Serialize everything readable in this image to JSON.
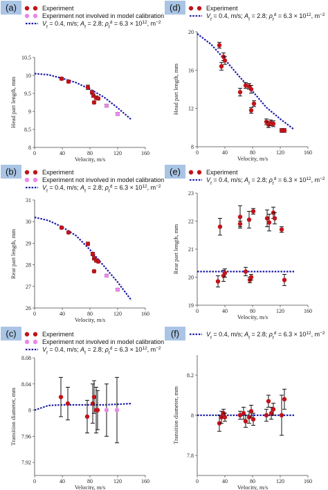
{
  "colors": {
    "experiment": "#c0141a",
    "not_involved": "#e88ae8",
    "model": "#1a1aa8",
    "letter_bg": "#a9c4e4",
    "errorbar": "#111111"
  },
  "legend": {
    "experiment": "Experiment",
    "not_involved": "Experiment not involved in model calibration",
    "model": "V_f = 0.4, m/s; A_f = 2.8; ρ_f^d = 6.3 × 10^12, m^-2"
  },
  "chart_data": [
    {
      "id": "a",
      "type": "scatter",
      "letter": "(a)",
      "xlabel": "Velocity, m/s",
      "ylabel": "Head part length, mm",
      "xlim": [
        0,
        160
      ],
      "ylim": [
        8,
        10.5
      ],
      "xticks": [
        "0",
        "40",
        "80",
        "120",
        "160"
      ],
      "yticks": [
        "8",
        "8.5",
        "9",
        "9.5",
        "10",
        "10.5"
      ],
      "legend_items": [
        "experiment",
        "not_involved",
        "model"
      ],
      "series": [
        {
          "name": "Experiment",
          "points": [
            {
              "x": 39,
              "y": 9.91,
              "err": 0.04
            },
            {
              "x": 49,
              "y": 9.83,
              "err": 0.04
            },
            {
              "x": 77,
              "y": 9.67,
              "err": 0.06
            },
            {
              "x": 83,
              "y": 9.53,
              "err": 0.05
            },
            {
              "x": 85,
              "y": 9.44,
              "err": 0.05
            },
            {
              "x": 86,
              "y": 9.25,
              "err": 0.04
            },
            {
              "x": 89,
              "y": 9.38,
              "err": 0.05
            },
            {
              "x": 92,
              "y": 9.36,
              "err": 0.04
            }
          ]
        },
        {
          "name": "Experiment not involved in model calibration",
          "points": [
            {
              "x": 104,
              "y": 9.16,
              "err": 0.04
            },
            {
              "x": 120,
              "y": 8.93,
              "err": 0.04
            }
          ]
        }
      ],
      "model": {
        "x": [
          0,
          20,
          40,
          60,
          80,
          100,
          120,
          140
        ],
        "y": [
          10.05,
          10.02,
          9.92,
          9.8,
          9.62,
          9.4,
          9.1,
          8.77
        ]
      }
    },
    {
      "id": "d",
      "type": "scatter",
      "letter": "(d)",
      "xlabel": "Velocity, m/s",
      "ylabel": "Head part length, mm",
      "xlim": [
        0,
        160
      ],
      "ylim": [
        8,
        20
      ],
      "xticks": [
        "0",
        "40",
        "80",
        "120",
        "160"
      ],
      "yticks": [
        "8",
        "12",
        "16",
        "20"
      ],
      "legend_items": [
        "experiment",
        "model"
      ],
      "series": [
        {
          "name": "Experiment",
          "points": [
            {
              "x": 32,
              "y": 18.6,
              "err": 0.3
            },
            {
              "x": 35,
              "y": 16.4,
              "err": 0.4
            },
            {
              "x": 38,
              "y": 17.4,
              "err": 0.4
            },
            {
              "x": 40,
              "y": 17.0,
              "err": 0.4
            },
            {
              "x": 62,
              "y": 13.7,
              "err": 0.4
            },
            {
              "x": 70,
              "y": 14.4,
              "err": 0.3
            },
            {
              "x": 75,
              "y": 14.3,
              "err": 0.3
            },
            {
              "x": 78,
              "y": 14.0,
              "err": 0.4
            },
            {
              "x": 78,
              "y": 11.8,
              "err": 0.3
            },
            {
              "x": 82,
              "y": 12.5,
              "err": 0.3
            },
            {
              "x": 100,
              "y": 10.6,
              "err": 0.3
            },
            {
              "x": 103,
              "y": 10.3,
              "err": 0.3
            },
            {
              "x": 106,
              "y": 10.5,
              "err": 0.3
            },
            {
              "x": 110,
              "y": 10.4,
              "err": 0.3
            },
            {
              "x": 122,
              "y": 9.7,
              "err": 0.2
            },
            {
              "x": 126,
              "y": 9.7,
              "err": 0.2
            }
          ]
        }
      ],
      "model": {
        "x": [
          0,
          20,
          40,
          60,
          80,
          100,
          120,
          140
        ],
        "y": [
          19.8,
          18.7,
          17.1,
          15.4,
          13.8,
          12.1,
          10.9,
          9.8
        ]
      }
    },
    {
      "id": "b",
      "type": "scatter",
      "letter": "(b)",
      "xlabel": "Velocity, m/s",
      "ylabel": "Rear part length, mm",
      "xlim": [
        0,
        160
      ],
      "ylim": [
        26,
        31
      ],
      "xticks": [
        "0",
        "40",
        "80",
        "120",
        "160"
      ],
      "yticks": [
        "26",
        "27",
        "28",
        "29",
        "30",
        "31"
      ],
      "legend_items": [
        "experiment",
        "not_involved",
        "model"
      ],
      "series": [
        {
          "name": "Experiment",
          "points": [
            {
              "x": 39,
              "y": 29.72,
              "err": 0.06
            },
            {
              "x": 49,
              "y": 29.5,
              "err": 0.06
            },
            {
              "x": 77,
              "y": 28.97,
              "err": 0.08
            },
            {
              "x": 84,
              "y": 28.5,
              "err": 0.08
            },
            {
              "x": 86,
              "y": 28.3,
              "err": 0.08
            },
            {
              "x": 86,
              "y": 27.7,
              "err": 0.06
            },
            {
              "x": 89,
              "y": 28.2,
              "err": 0.08
            },
            {
              "x": 92,
              "y": 28.15,
              "err": 0.06
            }
          ]
        },
        {
          "name": "Experiment not involved in model calibration",
          "points": [
            {
              "x": 104,
              "y": 27.5,
              "err": 0.06
            },
            {
              "x": 120,
              "y": 26.85,
              "err": 0.06
            }
          ]
        }
      ],
      "model": {
        "x": [
          0,
          20,
          40,
          60,
          80,
          100,
          120,
          140
        ],
        "y": [
          30.2,
          30.05,
          29.75,
          29.35,
          28.7,
          27.95,
          27.2,
          26.35
        ]
      }
    },
    {
      "id": "e",
      "type": "scatter",
      "letter": "(e)",
      "xlabel": "Velocity, m/s",
      "ylabel": "Rear part length, mm",
      "xlim": [
        0,
        160
      ],
      "ylim": [
        19,
        23
      ],
      "xticks": [
        "0",
        "40",
        "80",
        "120",
        "160"
      ],
      "yticks": [
        "19",
        "20",
        "21",
        "22",
        "23"
      ],
      "legend_items": [
        "experiment",
        "model"
      ],
      "series": [
        {
          "name": "Experiment",
          "points": [
            {
              "x": 30,
              "y": 19.85,
              "err": 0.2
            },
            {
              "x": 33,
              "y": 21.8,
              "err": 0.3
            },
            {
              "x": 38,
              "y": 20.05,
              "err": 0.2
            },
            {
              "x": 40,
              "y": 20.15,
              "err": 0.15
            },
            {
              "x": 62,
              "y": 22.15,
              "err": 0.4
            },
            {
              "x": 62,
              "y": 21.9,
              "err": 0.1
            },
            {
              "x": 70,
              "y": 20.2,
              "err": 0.15
            },
            {
              "x": 75,
              "y": 22.05,
              "err": 0.3
            },
            {
              "x": 76,
              "y": 19.9,
              "err": 0.1
            },
            {
              "x": 78,
              "y": 20.0,
              "err": 0.1
            },
            {
              "x": 81,
              "y": 22.35,
              "err": 0.1
            },
            {
              "x": 101,
              "y": 22.1,
              "err": 0.3
            },
            {
              "x": 104,
              "y": 21.95,
              "err": 0.3
            },
            {
              "x": 110,
              "y": 22.3,
              "err": 0.2
            },
            {
              "x": 112,
              "y": 22.1,
              "err": 0.2
            },
            {
              "x": 122,
              "y": 21.7,
              "err": 0.1
            },
            {
              "x": 126,
              "y": 19.9,
              "err": 0.2
            }
          ]
        }
      ],
      "model": {
        "x": [
          0,
          20,
          40,
          60,
          80,
          100,
          120,
          140
        ],
        "y": [
          20.2,
          20.2,
          20.2,
          20.2,
          20.2,
          20.2,
          20.2,
          20.2
        ]
      }
    },
    {
      "id": "c",
      "type": "scatter",
      "letter": "(c)",
      "xlabel": "Velocity, m/s",
      "ylabel": "Transition diameter, mm",
      "xlim": [
        0,
        160
      ],
      "ylim": [
        7.9,
        8.08
      ],
      "xticks": [
        "0",
        "40",
        "80",
        "120",
        "160"
      ],
      "yticks": [
        "7.92",
        "7.96",
        "8",
        "8.04",
        "8.08"
      ],
      "legend_items": [
        "experiment",
        "not_involved",
        "model"
      ],
      "series": [
        {
          "name": "Experiment",
          "points": [
            {
              "x": 38,
              "y": 8.02,
              "err": 0.03
            },
            {
              "x": 48,
              "y": 8.01,
              "err": 0.025
            },
            {
              "x": 76,
              "y": 7.99,
              "err": 0.025
            },
            {
              "x": 84,
              "y": 8.01,
              "err": 0.03
            },
            {
              "x": 86,
              "y": 8.02,
              "err": 0.025
            },
            {
              "x": 89,
              "y": 8.0,
              "err": 0.035
            },
            {
              "x": 91,
              "y": 8.0,
              "err": 0.03
            }
          ]
        },
        {
          "name": "Experiment not involved in model calibration",
          "points": [
            {
              "x": 104,
              "y": 8.0,
              "err": 0.04
            },
            {
              "x": 119,
              "y": 8.0,
              "err": 0.05
            }
          ]
        }
      ],
      "model": {
        "x": [
          0,
          20,
          40,
          60,
          80,
          100,
          120,
          140
        ],
        "y": [
          8.0,
          8.007,
          8.008,
          8.008,
          8.008,
          8.008,
          8.009,
          8.01
        ]
      }
    },
    {
      "id": "f",
      "type": "scatter",
      "letter": "(f)",
      "xlabel": "Velocity, m/s",
      "ylabel": "Transition diameter, mm",
      "xlim": [
        0,
        160
      ],
      "ylim": [
        7.7,
        8.3
      ],
      "xticks": [
        "0",
        "40",
        "80",
        "120",
        "160"
      ],
      "yticks": [
        "7.8",
        "8",
        "8.2"
      ],
      "legend_items": [
        "model"
      ],
      "series": [
        {
          "name": "Experiment",
          "points": [
            {
              "x": 32,
              "y": 7.96,
              "err": 0.04
            },
            {
              "x": 35,
              "y": 7.99,
              "err": 0.03
            },
            {
              "x": 38,
              "y": 8.01,
              "err": 0.02
            },
            {
              "x": 40,
              "y": 7.99,
              "err": 0.02
            },
            {
              "x": 62,
              "y": 8.0,
              "err": 0.02
            },
            {
              "x": 67,
              "y": 8.01,
              "err": 0.03
            },
            {
              "x": 70,
              "y": 7.97,
              "err": 0.03
            },
            {
              "x": 75,
              "y": 7.99,
              "err": 0.03
            },
            {
              "x": 78,
              "y": 8.02,
              "err": 0.03
            },
            {
              "x": 81,
              "y": 7.98,
              "err": 0.03
            },
            {
              "x": 100,
              "y": 8.0,
              "err": 0.03
            },
            {
              "x": 103,
              "y": 8.07,
              "err": 0.03
            },
            {
              "x": 107,
              "y": 8.01,
              "err": 0.03
            },
            {
              "x": 110,
              "y": 8.03,
              "err": 0.03
            },
            {
              "x": 122,
              "y": 8.0,
              "err": 0.1
            },
            {
              "x": 126,
              "y": 8.08,
              "err": 0.05
            }
          ]
        }
      ],
      "model": {
        "x": [
          0,
          20,
          40,
          60,
          80,
          100,
          120,
          140
        ],
        "y": [
          8.0,
          8.0,
          8.0,
          8.0,
          8.0,
          8.0,
          8.0,
          8.0
        ]
      }
    }
  ]
}
